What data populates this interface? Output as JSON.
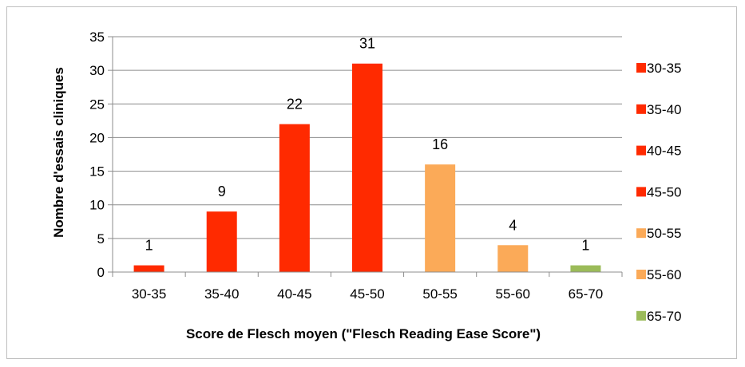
{
  "chart_data": {
    "type": "bar",
    "categories": [
      "30-35",
      "35-40",
      "40-45",
      "45-50",
      "50-55",
      "55-60",
      "65-70"
    ],
    "values": [
      1,
      9,
      22,
      31,
      16,
      4,
      1
    ],
    "colors": [
      "#ff2a00",
      "#ff2a00",
      "#ff2a00",
      "#ff2a00",
      "#fbaa58",
      "#fbaa58",
      "#9bbb59"
    ],
    "title": "",
    "xlabel": "Score de Flesch moyen (\"Flesch Reading Ease Score\")",
    "ylabel": "Nombre d'essais cliniques",
    "ylim": [
      0,
      35
    ],
    "yticks": [
      0,
      5,
      10,
      15,
      20,
      25,
      30,
      35
    ],
    "grid": true,
    "data_labels": true,
    "legend": {
      "position": "right",
      "entries": [
        {
          "label": "30-35",
          "color": "#ff2a00"
        },
        {
          "label": "35-40",
          "color": "#ff2a00"
        },
        {
          "label": "40-45",
          "color": "#ff2a00"
        },
        {
          "label": "45-50",
          "color": "#ff2a00"
        },
        {
          "label": "50-55",
          "color": "#fbaa58"
        },
        {
          "label": "55-60",
          "color": "#fbaa58"
        },
        {
          "label": "65-70",
          "color": "#9bbb59"
        }
      ]
    }
  }
}
